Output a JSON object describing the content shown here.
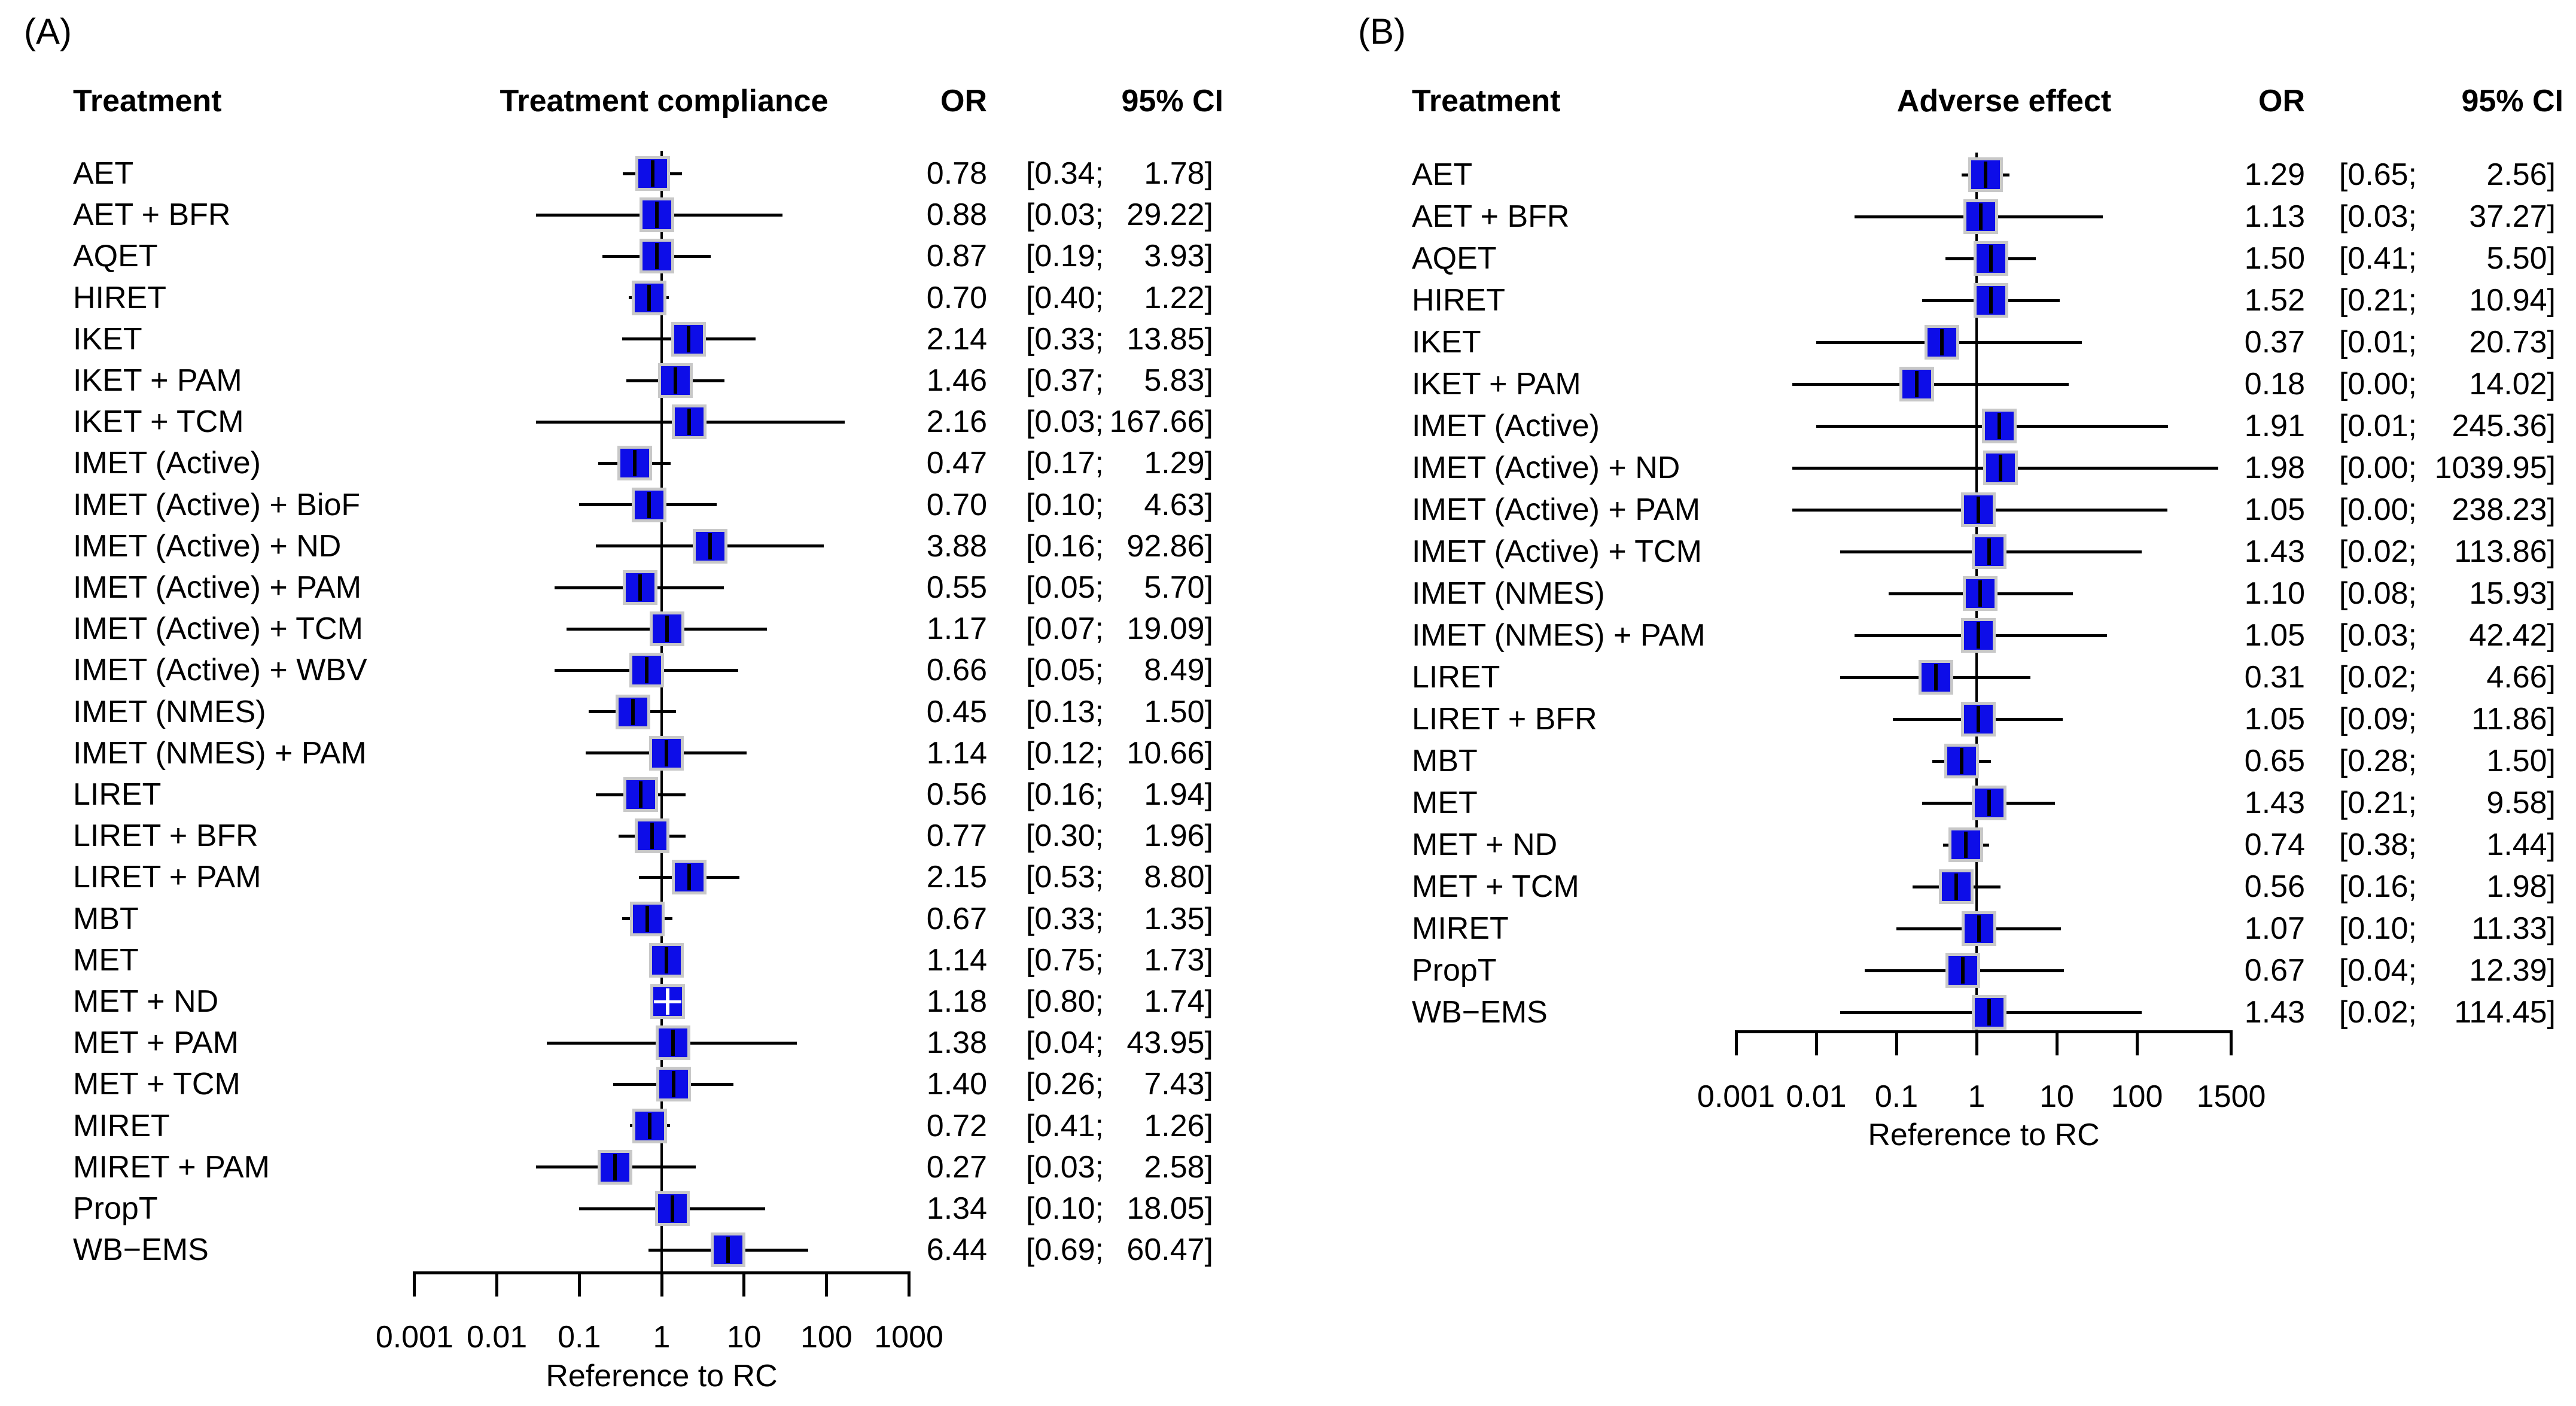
{
  "colors": {
    "marker_fill": "#0d0de8",
    "marker_border": "#c8c8c8",
    "line": "#000000",
    "background": "#ffffff"
  },
  "chart_data": [
    {
      "type": "forest",
      "panel_label": "(A)",
      "columns": {
        "treatment": "Treatment",
        "effect": "Treatment compliance",
        "or": "OR",
        "ci": "95% CI"
      },
      "xlabel": "Reference to RC",
      "axis_scale": "log",
      "xlim": [
        0.001,
        1000
      ],
      "x_ticks": [
        "0.001",
        "0.01",
        "0.1",
        "1",
        "10",
        "100",
        "1000"
      ],
      "grid": false,
      "rows": [
        {
          "treatment": "AET",
          "or": "0.78",
          "lo": "0.34",
          "hi": "1.78"
        },
        {
          "treatment": "AET + BFR",
          "or": "0.88",
          "lo": "0.03",
          "hi": "29.22"
        },
        {
          "treatment": "AQET",
          "or": "0.87",
          "lo": "0.19",
          "hi": "3.93"
        },
        {
          "treatment": "HIRET",
          "or": "0.70",
          "lo": "0.40",
          "hi": "1.22"
        },
        {
          "treatment": "IKET",
          "or": "2.14",
          "lo": "0.33",
          "hi": "13.85"
        },
        {
          "treatment": "IKET + PAM",
          "or": "1.46",
          "lo": "0.37",
          "hi": "5.83"
        },
        {
          "treatment": "IKET + TCM",
          "or": "2.16",
          "lo": "0.03",
          "hi": "167.66"
        },
        {
          "treatment": "IMET (Active)",
          "or": "0.47",
          "lo": "0.17",
          "hi": "1.29"
        },
        {
          "treatment": "IMET (Active) + BioF",
          "or": "0.70",
          "lo": "0.10",
          "hi": "4.63"
        },
        {
          "treatment": "IMET (Active) + ND",
          "or": "3.88",
          "lo": "0.16",
          "hi": "92.86"
        },
        {
          "treatment": "IMET (Active) + PAM",
          "or": "0.55",
          "lo": "0.05",
          "hi": "5.70"
        },
        {
          "treatment": "IMET (Active) + TCM",
          "or": "1.17",
          "lo": "0.07",
          "hi": "19.09"
        },
        {
          "treatment": "IMET (Active) + WBV",
          "or": "0.66",
          "lo": "0.05",
          "hi": "8.49"
        },
        {
          "treatment": "IMET (NMES)",
          "or": "0.45",
          "lo": "0.13",
          "hi": "1.50"
        },
        {
          "treatment": "IMET (NMES) + PAM",
          "or": "1.14",
          "lo": "0.12",
          "hi": "10.66"
        },
        {
          "treatment": "LIRET",
          "or": "0.56",
          "lo": "0.16",
          "hi": "1.94"
        },
        {
          "treatment": "LIRET + BFR",
          "or": "0.77",
          "lo": "0.30",
          "hi": "1.96"
        },
        {
          "treatment": "LIRET + PAM",
          "or": "2.15",
          "lo": "0.53",
          "hi": "8.80"
        },
        {
          "treatment": "MBT",
          "or": "0.67",
          "lo": "0.33",
          "hi": "1.35"
        },
        {
          "treatment": "MET",
          "or": "1.14",
          "lo": "0.75",
          "hi": "1.73"
        },
        {
          "treatment": "MET + ND",
          "or": "1.18",
          "lo": "0.80",
          "hi": "1.74"
        },
        {
          "treatment": "MET + PAM",
          "or": "1.38",
          "lo": "0.04",
          "hi": "43.95"
        },
        {
          "treatment": "MET + TCM",
          "or": "1.40",
          "lo": "0.26",
          "hi": "7.43"
        },
        {
          "treatment": "MIRET",
          "or": "0.72",
          "lo": "0.41",
          "hi": "1.26"
        },
        {
          "treatment": "MIRET + PAM",
          "or": "0.27",
          "lo": "0.03",
          "hi": "2.58"
        },
        {
          "treatment": "PropT",
          "or": "1.34",
          "lo": "0.10",
          "hi": "18.05"
        },
        {
          "treatment": "WB−EMS",
          "or": "6.44",
          "lo": "0.69",
          "hi": "60.47"
        }
      ]
    },
    {
      "type": "forest",
      "panel_label": "(B)",
      "columns": {
        "treatment": "Treatment",
        "effect": "Adverse effect",
        "or": "OR",
        "ci": "95% CI"
      },
      "xlabel": "Reference to RC",
      "axis_scale": "log",
      "xlim": [
        0.001,
        1500
      ],
      "x_ticks": [
        "0.001",
        "0.01",
        "0.1",
        "1",
        "10",
        "100",
        "1500"
      ],
      "grid": false,
      "rows": [
        {
          "treatment": "AET",
          "or": "1.29",
          "lo": "0.65",
          "hi": "2.56"
        },
        {
          "treatment": "AET + BFR",
          "or": "1.13",
          "lo": "0.03",
          "hi": "37.27"
        },
        {
          "treatment": "AQET",
          "or": "1.50",
          "lo": "0.41",
          "hi": "5.50"
        },
        {
          "treatment": "HIRET",
          "or": "1.52",
          "lo": "0.21",
          "hi": "10.94"
        },
        {
          "treatment": "IKET",
          "or": "0.37",
          "lo": "0.01",
          "hi": "20.73"
        },
        {
          "treatment": "IKET + PAM",
          "or": "0.18",
          "lo": "0.00",
          "hi": "14.02"
        },
        {
          "treatment": "IMET (Active)",
          "or": "1.91",
          "lo": "0.01",
          "hi": "245.36"
        },
        {
          "treatment": "IMET (Active) + ND",
          "or": "1.98",
          "lo": "0.00",
          "hi": "1039.95"
        },
        {
          "treatment": "IMET (Active) + PAM",
          "or": "1.05",
          "lo": "0.00",
          "hi": "238.23"
        },
        {
          "treatment": "IMET (Active) + TCM",
          "or": "1.43",
          "lo": "0.02",
          "hi": "113.86"
        },
        {
          "treatment": "IMET (NMES)",
          "or": "1.10",
          "lo": "0.08",
          "hi": "15.93"
        },
        {
          "treatment": "IMET (NMES) + PAM",
          "or": "1.05",
          "lo": "0.03",
          "hi": "42.42"
        },
        {
          "treatment": "LIRET",
          "or": "0.31",
          "lo": "0.02",
          "hi": "4.66"
        },
        {
          "treatment": "LIRET + BFR",
          "or": "1.05",
          "lo": "0.09",
          "hi": "11.86"
        },
        {
          "treatment": "MBT",
          "or": "0.65",
          "lo": "0.28",
          "hi": "1.50"
        },
        {
          "treatment": "MET",
          "or": "1.43",
          "lo": "0.21",
          "hi": "9.58"
        },
        {
          "treatment": "MET + ND",
          "or": "0.74",
          "lo": "0.38",
          "hi": "1.44"
        },
        {
          "treatment": "MET + TCM",
          "or": "0.56",
          "lo": "0.16",
          "hi": "1.98"
        },
        {
          "treatment": "MIRET",
          "or": "1.07",
          "lo": "0.10",
          "hi": "11.33"
        },
        {
          "treatment": "PropT",
          "or": "0.67",
          "lo": "0.04",
          "hi": "12.39"
        },
        {
          "treatment": "WB−EMS",
          "or": "1.43",
          "lo": "0.02",
          "hi": "114.45"
        }
      ]
    }
  ]
}
